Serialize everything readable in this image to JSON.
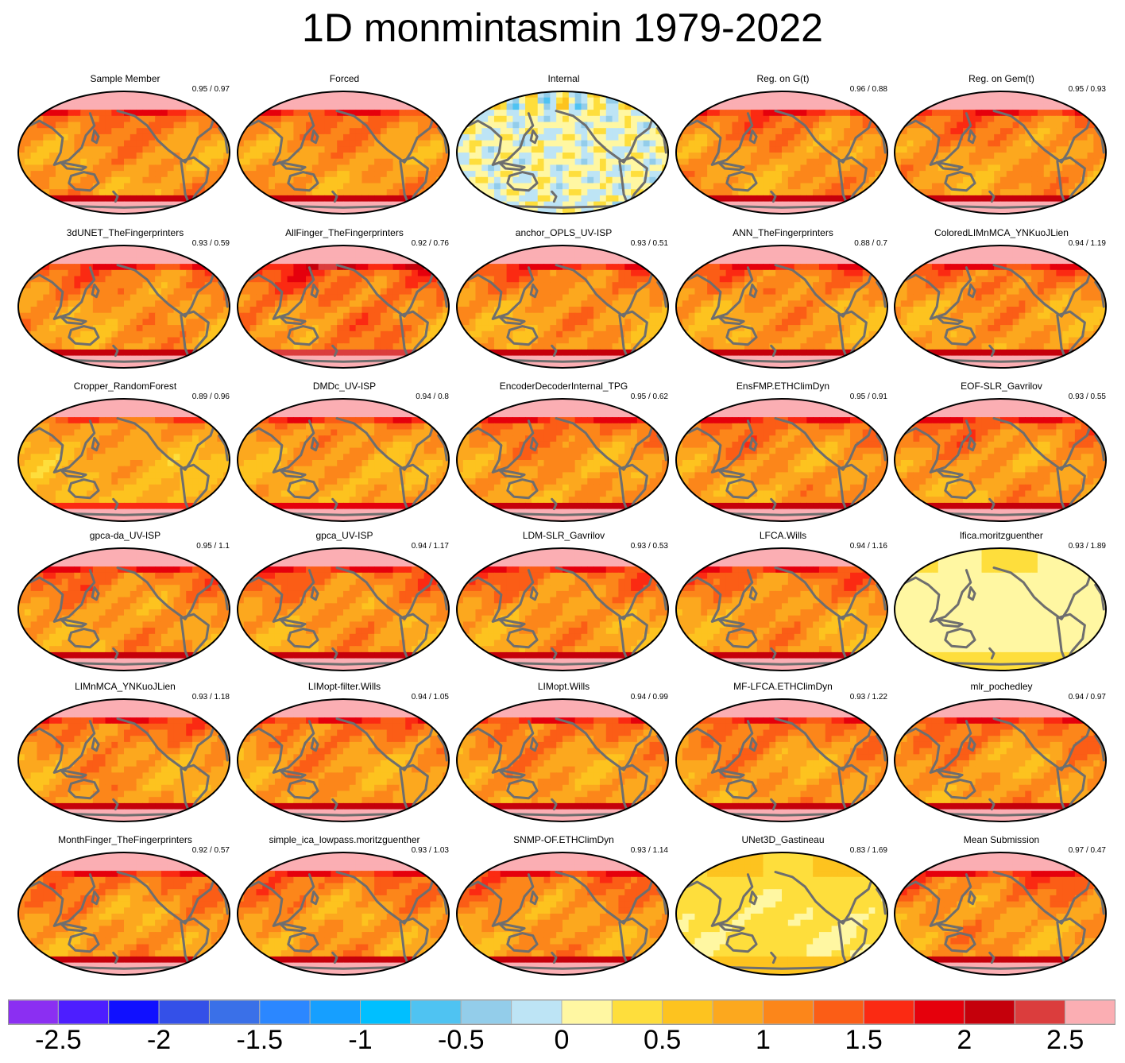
{
  "chart_data": {
    "type": "heatmap",
    "title": "1D monmintasmin 1979-2022",
    "projection": "Robinson-like world maps, Pacific centered",
    "panels": [
      {
        "name": "Sample Member",
        "corr": 0.95,
        "rmse": 0.97,
        "stats": "0.95 / 0.97",
        "intensity": 1.0
      },
      {
        "name": "Forced",
        "corr": null,
        "rmse": null,
        "stats": "",
        "intensity": 1.0
      },
      {
        "name": "Internal",
        "corr": null,
        "rmse": null,
        "stats": "",
        "intensity": 0.0
      },
      {
        "name": "Reg. on G(t)",
        "corr": 0.96,
        "rmse": 0.88,
        "stats": "0.96 / 0.88",
        "intensity": 1.0
      },
      {
        "name": "Reg. on Gem(t)",
        "corr": 0.95,
        "rmse": 0.93,
        "stats": "0.95 / 0.93",
        "intensity": 1.0
      },
      {
        "name": "3dUNET_TheFingerprinters",
        "corr": 0.93,
        "rmse": 0.59,
        "stats": "0.93 / 0.59",
        "intensity": 1.0
      },
      {
        "name": "AllFinger_TheFingerprinters",
        "corr": 0.92,
        "rmse": 0.76,
        "stats": "0.92 / 0.76",
        "intensity": 1.15
      },
      {
        "name": "anchor_OPLS_UV-ISP",
        "corr": 0.93,
        "rmse": 0.51,
        "stats": "0.93 / 0.51",
        "intensity": 1.0
      },
      {
        "name": "ANN_TheFingerprinters",
        "corr": 0.88,
        "rmse": 0.7,
        "stats": "0.88 / 0.7",
        "intensity": 1.0
      },
      {
        "name": "ColoredLIMnMCA_YNKuoJLien",
        "corr": 0.94,
        "rmse": 1.19,
        "stats": "0.94 / 1.19",
        "intensity": 1.0
      },
      {
        "name": "Cropper_RandomForest",
        "corr": 0.89,
        "rmse": 0.96,
        "stats": "0.89 / 0.96",
        "intensity": 0.8
      },
      {
        "name": "DMDc_UV-ISP",
        "corr": 0.94,
        "rmse": 0.8,
        "stats": "0.94 / 0.8",
        "intensity": 0.9
      },
      {
        "name": "EncoderDecoderInternal_TPG",
        "corr": 0.95,
        "rmse": 0.62,
        "stats": "0.95 / 0.62",
        "intensity": 1.0
      },
      {
        "name": "EnsFMP.ETHClimDyn",
        "corr": 0.95,
        "rmse": 0.91,
        "stats": "0.95 / 0.91",
        "intensity": 1.0
      },
      {
        "name": "EOF-SLR_Gavrilov",
        "corr": 0.93,
        "rmse": 0.55,
        "stats": "0.93 / 0.55",
        "intensity": 1.0
      },
      {
        "name": "gpca-da_UV-ISP",
        "corr": 0.95,
        "rmse": 1.1,
        "stats": "0.95 / 1.1",
        "intensity": 1.0
      },
      {
        "name": "gpca_UV-ISP",
        "corr": 0.94,
        "rmse": 1.17,
        "stats": "0.94 / 1.17",
        "intensity": 1.0
      },
      {
        "name": "LDM-SLR_Gavrilov",
        "corr": 0.93,
        "rmse": 0.53,
        "stats": "0.93 / 0.53",
        "intensity": 1.0
      },
      {
        "name": "LFCA.Wills",
        "corr": 0.94,
        "rmse": 1.16,
        "stats": "0.94 / 1.16",
        "intensity": 1.0
      },
      {
        "name": "lfica.moritzguenther",
        "corr": 0.93,
        "rmse": 1.89,
        "stats": "0.93 / 1.89",
        "intensity": 0.15
      },
      {
        "name": "LIMnMCA_YNKuoJLien",
        "corr": 0.93,
        "rmse": 1.18,
        "stats": "0.93 / 1.18",
        "intensity": 1.0
      },
      {
        "name": "LIMopt-filter.Wills",
        "corr": 0.94,
        "rmse": 1.05,
        "stats": "0.94 / 1.05",
        "intensity": 1.0
      },
      {
        "name": "LIMopt.Wills",
        "corr": 0.94,
        "rmse": 0.99,
        "stats": "0.94 / 0.99",
        "intensity": 1.0
      },
      {
        "name": "MF-LFCA.ETHClimDyn",
        "corr": 0.93,
        "rmse": 1.22,
        "stats": "0.93 / 1.22",
        "intensity": 1.0
      },
      {
        "name": "mlr_pochedley",
        "corr": 0.94,
        "rmse": 0.97,
        "stats": "0.94 / 0.97",
        "intensity": 1.0
      },
      {
        "name": "MonthFinger_TheFingerprinters",
        "corr": 0.92,
        "rmse": 0.57,
        "stats": "0.92 / 0.57",
        "intensity": 1.0
      },
      {
        "name": "simple_ica_lowpass.moritzguenther",
        "corr": 0.93,
        "rmse": 1.03,
        "stats": "0.93 / 1.03",
        "intensity": 1.0
      },
      {
        "name": "SNMP-OF.ETHClimDyn",
        "corr": 0.93,
        "rmse": 1.14,
        "stats": "0.93 / 1.14",
        "intensity": 1.0
      },
      {
        "name": "UNet3D_Gastineau",
        "corr": 0.83,
        "rmse": 1.69,
        "stats": "0.83 / 1.69",
        "intensity": 0.3
      },
      {
        "name": "Mean Submission",
        "corr": 0.97,
        "rmse": 0.47,
        "stats": "0.97 / 0.47",
        "intensity": 1.0
      }
    ],
    "colorbar": {
      "min": -2.75,
      "max": 2.75,
      "step": 0.25,
      "colors": [
        "#8b2ff2",
        "#4d1eff",
        "#1010ff",
        "#3450e8",
        "#3a70e8",
        "#2b87ff",
        "#169fff",
        "#00bfff",
        "#4fc3f2",
        "#93cdea",
        "#bde4f5",
        "#fff7a2",
        "#fede3c",
        "#fdc31f",
        "#fca81e",
        "#fc861a",
        "#fb5d16",
        "#fb2a12",
        "#e5000c",
        "#c5000b",
        "#db3d3d",
        "#fbaeb3"
      ],
      "tick_values": [
        -2.5,
        -2,
        -1.5,
        -1,
        -0.5,
        0,
        0.5,
        1,
        1.5,
        2,
        2.5
      ],
      "tick_labels": [
        "-2.5",
        "-2",
        "-1.5",
        "-1",
        "-0.5",
        "0",
        "0.5",
        "1",
        "1.5",
        "2",
        "2.5"
      ]
    },
    "colors": {
      "coastline": "#6e6e6e",
      "frame": "#000000",
      "polar_land": "#fbaeb3"
    }
  }
}
